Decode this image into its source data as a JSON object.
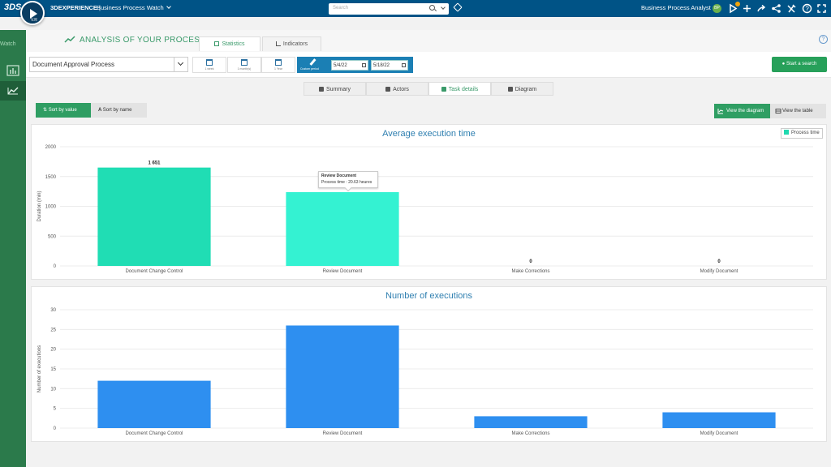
{
  "topbar": {
    "brand_strong": "3DEXPERIENCE",
    "brand_sep": " | ",
    "app_name": "Business Process Watch",
    "search_placeholder": "Search",
    "user_name": "Business Process Analyst 1",
    "user_initials": "BP",
    "compass_version": "V.R",
    "ds_logo": "3DS"
  },
  "sidebar": {
    "watch_label": "Watch"
  },
  "header": {
    "title": "ANALYSIS OF YOUR PROCESSES",
    "tabs": [
      {
        "label": "Statistics"
      },
      {
        "label": "Indicators"
      }
    ],
    "help_glyph": "?"
  },
  "toolbar": {
    "process": "Document Approval Process",
    "periods": [
      "1 week",
      "1 month(s)",
      "1 Year"
    ],
    "custom_label": "Custom period",
    "date_from": "5/4/22",
    "date_to": "5/18/22",
    "start_search": "Start a search"
  },
  "subtabs": [
    {
      "label": "Summary"
    },
    {
      "label": "Actors"
    },
    {
      "label": "Task details"
    },
    {
      "label": "Diagram"
    }
  ],
  "sort": {
    "by_value": "Sort by value",
    "by_name": "Sort by name"
  },
  "view": {
    "diagram": "View the diagram",
    "table": "View the table"
  },
  "chart_data": [
    {
      "type": "bar",
      "title": "Average execution time",
      "ylabel": "Duration (min)",
      "ylim": [
        0,
        2000
      ],
      "yticks": [
        0,
        500,
        1000,
        1500,
        2000
      ],
      "categories": [
        "Document Change Control",
        "Review Document",
        "Make Corrections",
        "Modify Document"
      ],
      "series": [
        {
          "name": "Process time",
          "values": [
            1651,
            1238,
            0,
            0
          ]
        }
      ],
      "data_labels": [
        "1 651",
        "",
        "0",
        "0"
      ],
      "colors": [
        "#20ddb4",
        "#34f2d2",
        "#20ddb4",
        "#20ddb4"
      ],
      "legend": "top-right",
      "tooltip": {
        "title": "Review Document",
        "text": "Process time : 20.63 heures"
      }
    },
    {
      "type": "bar",
      "title": "Number of executions",
      "ylabel": "Number of executions",
      "ylim": [
        0,
        30
      ],
      "yticks": [
        0,
        5,
        10,
        15,
        20,
        25,
        30
      ],
      "categories": [
        "Document Change Control",
        "Review Document",
        "Make Corrections",
        "Modify Document"
      ],
      "series": [
        {
          "values": [
            12,
            26,
            3,
            4
          ]
        }
      ],
      "color": "#2e8ff0"
    }
  ]
}
